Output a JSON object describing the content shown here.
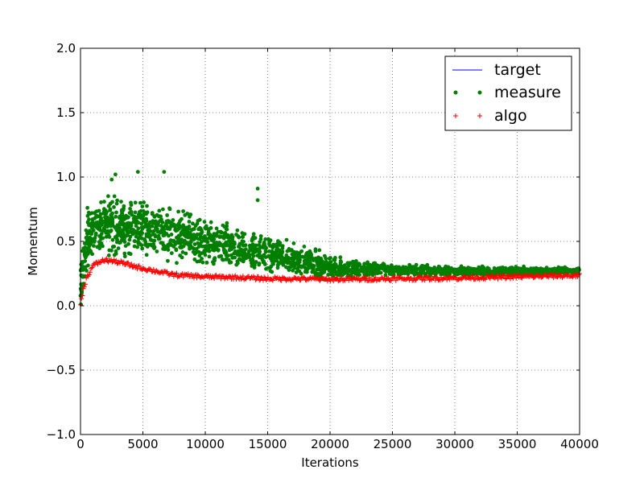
{
  "chart_data": {
    "type": "scatter",
    "xlabel": "Iterations",
    "ylabel": "Momentum",
    "xlim": [
      0,
      40000
    ],
    "ylim": [
      -1.0,
      2.0
    ],
    "grid": true,
    "legend_position": "top-right",
    "x_ticks": [
      "0",
      "5000",
      "10000",
      "15000",
      "20000",
      "25000",
      "30000",
      "35000",
      "40000"
    ],
    "y_ticks": [
      "−1.0",
      "−0.5",
      "0.0",
      "0.5",
      "1.0",
      "1.5",
      "2.0"
    ],
    "colors": {
      "target": "#0000ff",
      "measure": "#007f00",
      "algo": "#ff0000"
    },
    "series": [
      {
        "name": "target",
        "style": "line",
        "color": "#0000ff",
        "values": []
      },
      {
        "name": "measure",
        "style": "dots",
        "color": "#007f00",
        "x": [
          0,
          500,
          1000,
          2000,
          3000,
          5000,
          7500,
          10000,
          12500,
          15000,
          17500,
          20000,
          22500,
          25000,
          30000,
          35000,
          40000
        ],
        "mean": [
          0.15,
          0.5,
          0.58,
          0.62,
          0.62,
          0.6,
          0.55,
          0.5,
          0.44,
          0.4,
          0.35,
          0.3,
          0.28,
          0.28,
          0.27,
          0.27,
          0.27
        ],
        "low": [
          -0.06,
          0.25,
          0.32,
          0.38,
          0.38,
          0.38,
          0.33,
          0.3,
          0.27,
          0.25,
          0.22,
          0.2,
          0.21,
          0.22,
          0.23,
          0.24,
          0.25
        ],
        "high": [
          0.45,
          0.82,
          0.9,
          0.95,
          0.92,
          0.88,
          0.82,
          0.72,
          0.64,
          0.58,
          0.5,
          0.42,
          0.35,
          0.33,
          0.32,
          0.32,
          0.31
        ],
        "outliers": [
          [
            2800,
            1.02
          ],
          [
            4600,
            1.04
          ],
          [
            6700,
            1.04
          ],
          [
            14200,
            0.91
          ],
          [
            14200,
            0.82
          ],
          [
            2500,
            0.98
          ]
        ]
      },
      {
        "name": "algo",
        "style": "plus",
        "color": "#ff0000",
        "x": [
          0,
          200,
          500,
          1000,
          1500,
          2000,
          3000,
          5000,
          7500,
          10000,
          12500,
          15000,
          17500,
          20000,
          25000,
          30000,
          35000,
          40000
        ],
        "values": [
          0.0,
          0.12,
          0.22,
          0.31,
          0.34,
          0.355,
          0.34,
          0.29,
          0.24,
          0.225,
          0.22,
          0.21,
          0.21,
          0.205,
          0.21,
          0.215,
          0.225,
          0.235
        ]
      }
    ]
  }
}
